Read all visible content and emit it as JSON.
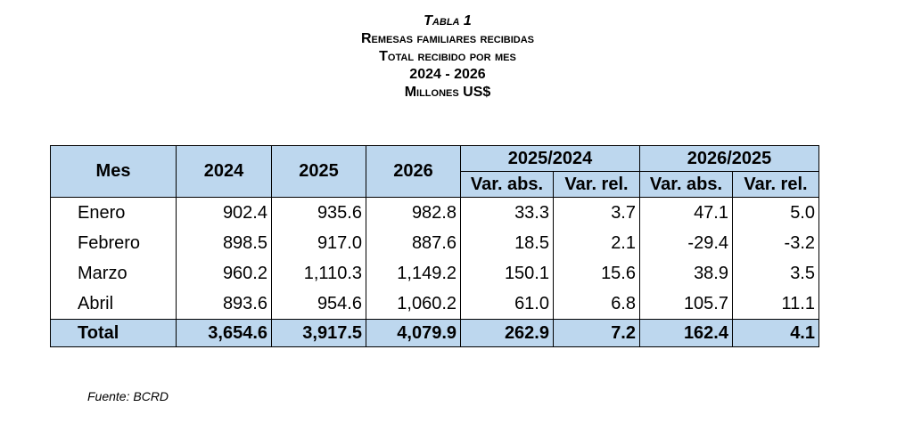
{
  "title": {
    "line1": "Tabla 1",
    "line2": "Remesas familiares recibidas",
    "line3": "Total recibido por mes",
    "line4": "2024 - 2026",
    "line5": "Millones US$"
  },
  "table": {
    "headers": {
      "mes": "Mes",
      "y2024": "2024",
      "y2025": "2025",
      "y2026": "2026",
      "g1": "2025/2024",
      "g2": "2026/2025",
      "abs1": "Var. abs.",
      "rel1": "Var. rel.",
      "abs2": "Var. abs.",
      "rel2": "Var. rel."
    },
    "rows": [
      [
        "Enero",
        "902.4",
        "935.6",
        "982.8",
        "33.3",
        "3.7",
        "47.1",
        "5.0"
      ],
      [
        "Febrero",
        "898.5",
        "917.0",
        "887.6",
        "18.5",
        "2.1",
        "-29.4",
        "-3.2"
      ],
      [
        "Marzo",
        "960.2",
        "1,110.3",
        "1,149.2",
        "150.1",
        "15.6",
        "38.9",
        "3.5"
      ],
      [
        "Abril",
        "893.6",
        "954.6",
        "1,060.2",
        "61.0",
        "6.8",
        "105.7",
        "11.1"
      ]
    ],
    "total": [
      "Total",
      "3,654.6",
      "3,917.5",
      "4,079.9",
      "262.9",
      "7.2",
      "162.4",
      "4.1"
    ]
  },
  "source": "Fuente: BCRD",
  "colors": {
    "header_fill": "#bdd7ee"
  }
}
